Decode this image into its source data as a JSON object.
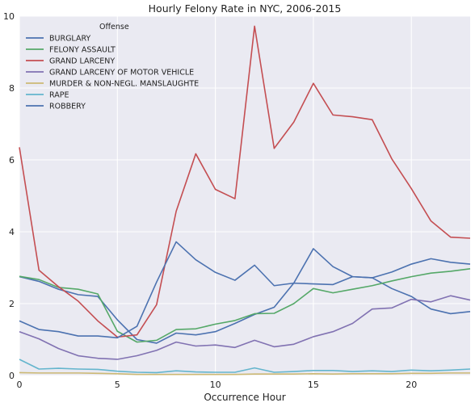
{
  "chart_data": {
    "type": "line",
    "title": "Hourly Felony Rate in NYC, 2006-2015",
    "xlabel": "Occurrence Hour",
    "ylabel": "",
    "xlim": [
      0,
      23
    ],
    "ylim": [
      0,
      10
    ],
    "x_ticks": [
      0,
      5,
      10,
      15,
      20
    ],
    "y_ticks": [
      0,
      2,
      4,
      6,
      8,
      10
    ],
    "grid": true,
    "legend": {
      "title": "Offense",
      "placement": "upper-left"
    },
    "x": [
      0,
      1,
      2,
      3,
      4,
      5,
      6,
      7,
      8,
      9,
      10,
      11,
      12,
      13,
      14,
      15,
      16,
      17,
      18,
      19,
      20,
      21,
      22,
      23
    ],
    "series": [
      {
        "name": "BURGLARY",
        "color": "#4c72b0",
        "values": [
          2.75,
          2.62,
          2.4,
          2.25,
          2.2,
          1.55,
          1.0,
          0.9,
          1.18,
          1.13,
          1.22,
          1.45,
          1.7,
          1.9,
          2.57,
          2.55,
          2.53,
          2.75,
          2.72,
          2.42,
          2.2,
          1.85,
          1.72,
          1.78
        ]
      },
      {
        "name": "FELONY ASSAULT",
        "color": "#55a868",
        "values": [
          2.76,
          2.67,
          2.45,
          2.4,
          2.27,
          1.23,
          0.93,
          0.98,
          1.28,
          1.3,
          1.43,
          1.53,
          1.72,
          1.73,
          2.0,
          2.42,
          2.3,
          2.4,
          2.5,
          2.63,
          2.75,
          2.85,
          2.9,
          2.97
        ]
      },
      {
        "name": "GRAND LARCENY",
        "color": "#c44e52",
        "values": [
          6.35,
          2.93,
          2.47,
          2.07,
          1.52,
          1.07,
          1.13,
          1.97,
          4.57,
          6.17,
          5.18,
          4.92,
          9.72,
          6.32,
          7.05,
          8.13,
          7.25,
          7.2,
          7.12,
          6.03,
          5.2,
          4.3,
          3.85,
          3.82
        ]
      },
      {
        "name": "GRAND LARCENY OF MOTOR VEHICLE",
        "color": "#8172b2",
        "values": [
          1.22,
          1.02,
          0.75,
          0.55,
          0.48,
          0.45,
          0.55,
          0.7,
          0.93,
          0.82,
          0.85,
          0.78,
          0.98,
          0.8,
          0.87,
          1.08,
          1.22,
          1.45,
          1.85,
          1.88,
          2.12,
          2.05,
          2.22,
          2.1
        ]
      },
      {
        "name": "MURDER & NON-NEGL. MANSLAUGHTE",
        "color": "#ccb974",
        "values": [
          0.08,
          0.07,
          0.07,
          0.07,
          0.06,
          0.05,
          0.03,
          0.03,
          0.03,
          0.03,
          0.03,
          0.03,
          0.04,
          0.04,
          0.04,
          0.05,
          0.04,
          0.05,
          0.05,
          0.05,
          0.06,
          0.06,
          0.07,
          0.07
        ]
      },
      {
        "name": "RAPE",
        "color": "#64b5cd",
        "values": [
          0.45,
          0.18,
          0.2,
          0.18,
          0.17,
          0.12,
          0.09,
          0.08,
          0.13,
          0.1,
          0.09,
          0.09,
          0.21,
          0.09,
          0.11,
          0.14,
          0.14,
          0.11,
          0.13,
          0.11,
          0.15,
          0.13,
          0.15,
          0.18
        ]
      },
      {
        "name": "ROBBERY",
        "color": "#4c72b0",
        "values": [
          1.52,
          1.28,
          1.22,
          1.1,
          1.1,
          1.05,
          1.37,
          2.6,
          3.72,
          3.22,
          2.87,
          2.65,
          3.07,
          2.5,
          2.57,
          3.53,
          3.03,
          2.75,
          2.72,
          2.88,
          3.1,
          3.25,
          3.15,
          3.1
        ]
      }
    ]
  }
}
